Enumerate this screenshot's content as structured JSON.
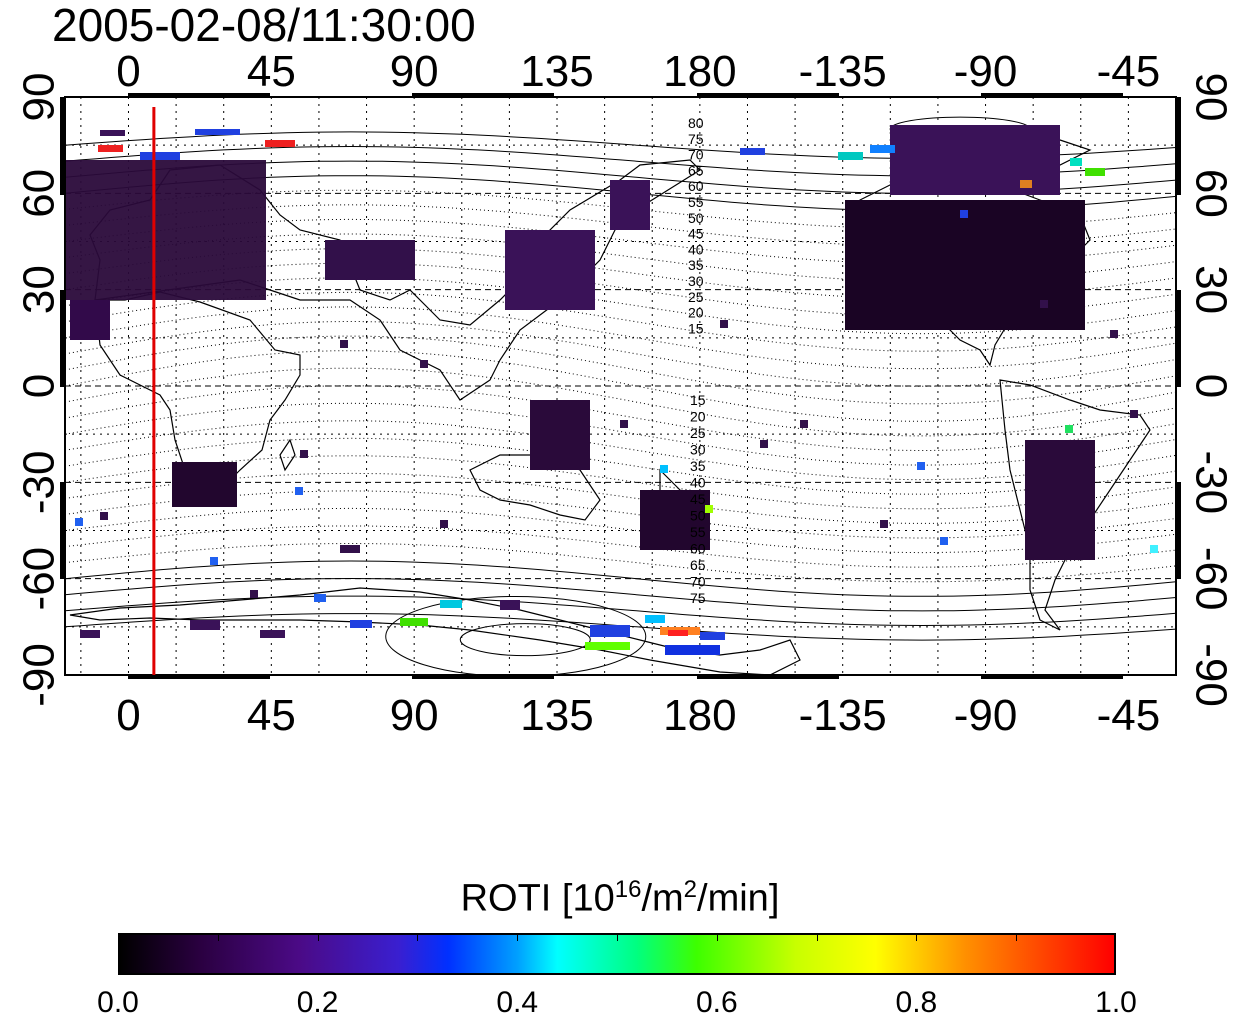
{
  "title": "2005-02-08/11:30:00",
  "colorbar": {
    "label_main": "ROTI  [10",
    "label_sup1": "16",
    "label_mid": "/m",
    "label_sup2": "2",
    "label_end": "/min]",
    "ticks": [
      "0.0",
      "0.2",
      "0.4",
      "0.6",
      "0.8",
      "1.0"
    ],
    "range": [
      0.0,
      1.0
    ]
  },
  "map": {
    "x_tick_labels": [
      "0",
      "45",
      "90",
      "135",
      "180",
      "-135",
      "-90",
      "-45"
    ],
    "y_tick_labels_left": [
      "90",
      "60",
      "30",
      "0",
      "-30",
      "-60",
      "-90"
    ],
    "y_tick_labels_right": [
      "90",
      "60",
      "30",
      "0",
      "-30",
      "-60",
      "-90"
    ],
    "lon_range": [
      -20,
      330
    ],
    "lat_range": [
      -90,
      90
    ],
    "marker_longitude": 8,
    "marker_color": "#e00000",
    "north_contour_labels": [
      "80",
      "75",
      "70",
      "65",
      "60",
      "55",
      "50",
      "45",
      "40",
      "35",
      "30",
      "25",
      "20",
      "15"
    ],
    "south_contour_labels": [
      "15",
      "20",
      "25",
      "30",
      "35",
      "40",
      "45",
      "50",
      "55",
      "60",
      "65",
      "70",
      "75"
    ]
  }
}
